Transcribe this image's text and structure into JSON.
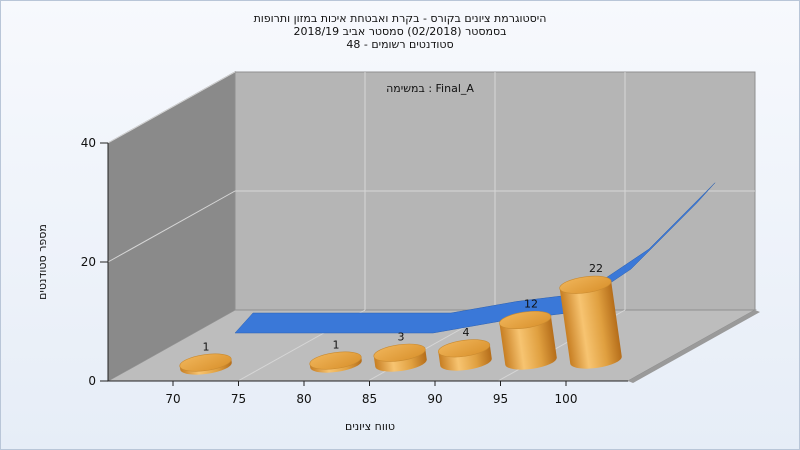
{
  "chart_data": {
    "type": "bar",
    "title": "היסטוגרמת ציונים בקורס - בקרת ואבטחת איכות במזון ותרופות",
    "subtitle_lines": [
      "בסמסטר (02/2018) סמסטר אביב 2018/19",
      "סטודנטים רשומים - 48"
    ],
    "annotation": "במשימה : Final_A",
    "xlabel": "טווח ציונים",
    "ylabel": "מספר סטודנטים",
    "x_tick_labels": [
      "70",
      "75",
      "80",
      "85",
      "90",
      "95",
      "100"
    ],
    "y_tick_labels": [
      "0",
      "20",
      "40"
    ],
    "ylim": [
      0,
      40
    ],
    "categories": [
      "70",
      "75",
      "80",
      "85",
      "90",
      "95",
      "100"
    ],
    "values": [
      1,
      null,
      1,
      3,
      4,
      12,
      22
    ],
    "value_labels": [
      "1",
      "",
      "1",
      "3",
      "4",
      "12",
      "22"
    ],
    "back_series_values": [
      0,
      0,
      0,
      0,
      3,
      5,
      16,
      32
    ],
    "colors": {
      "bar": "#e0a040",
      "line": "#3a78d8",
      "wall": "#8a8a8a",
      "back": "#b5b5b5",
      "floor": "#bdbdbd"
    },
    "grid": true
  }
}
